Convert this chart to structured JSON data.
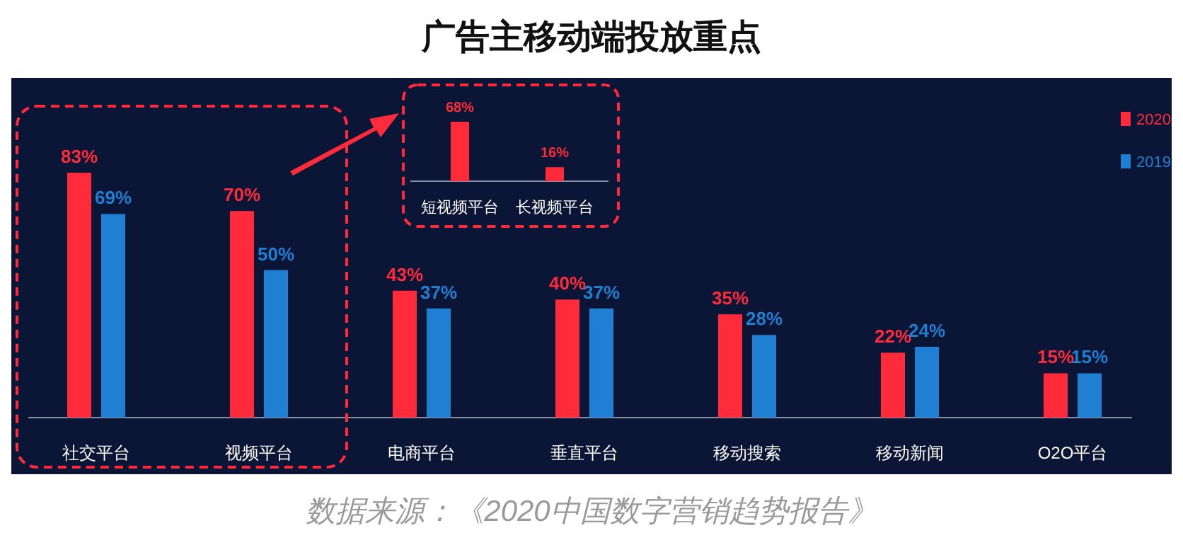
{
  "chart_data": [
    {
      "type": "bar",
      "title": "广告主移动端投放重点",
      "categories": [
        "社交平台",
        "视频平台",
        "电商平台",
        "垂直平台",
        "移动搜索",
        "移动新闻",
        "O2O平台"
      ],
      "series": [
        {
          "name": "2020",
          "color": "#ff2b3b",
          "values": [
            83,
            70,
            43,
            40,
            35,
            22,
            15
          ],
          "value_labels": [
            "83%",
            "70%",
            "43%",
            "40%",
            "35%",
            "22%",
            "15%"
          ]
        },
        {
          "name": "2019",
          "color": "#1f7fd2",
          "values": [
            69,
            50,
            37,
            37,
            28,
            24,
            15
          ],
          "value_labels": [
            "69%",
            "50%",
            "37%",
            "37%",
            "28%",
            "24%",
            "15%"
          ]
        }
      ],
      "legend": "top right",
      "annotations": [
        "数据来源：《2020中国数字营销趋势报告》"
      ]
    },
    {
      "type": "bar",
      "categories": [
        "短视频平台",
        "长视频平台"
      ],
      "series": [
        {
          "color": "#ff2b3b",
          "values": [
            68,
            16
          ],
          "value_labels": [
            "68%",
            "16%"
          ]
        }
      ]
    }
  ]
}
